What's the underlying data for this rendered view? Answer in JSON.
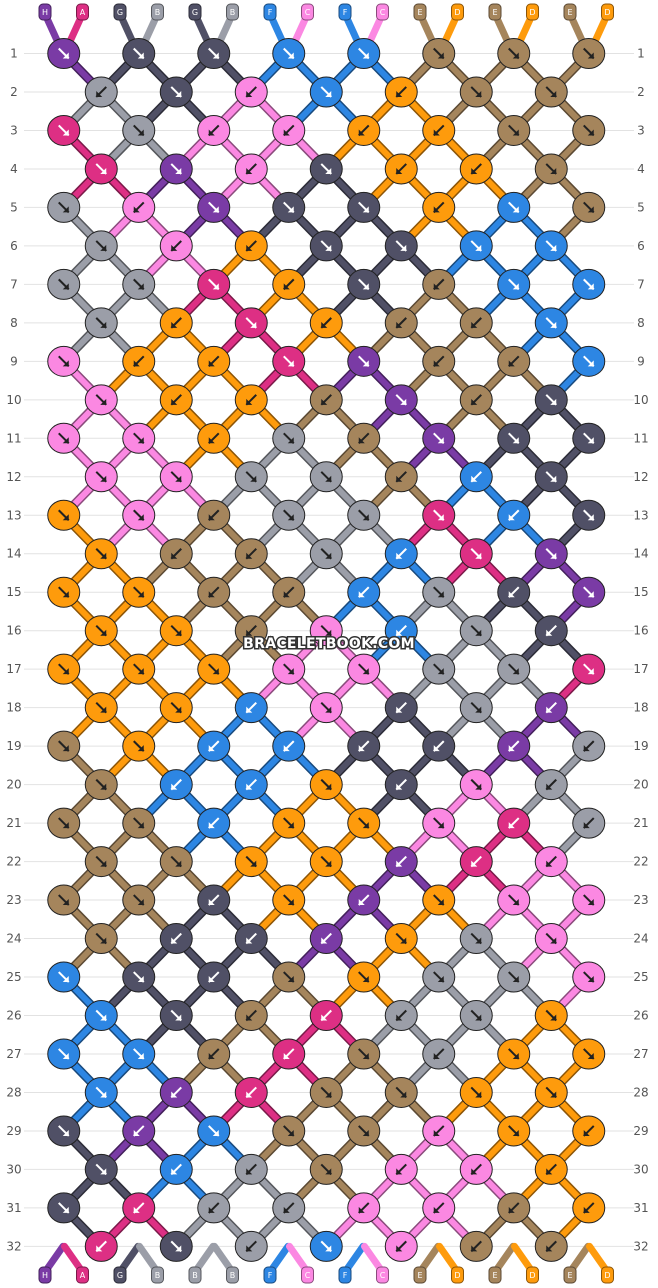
{
  "watermark": "BRACELETBOOK.COM",
  "colors": {
    "H": "#7a3ba5",
    "A": "#dd2f84",
    "G": "#505066",
    "B": "#9b9ea8",
    "F": "#2d86e3",
    "C": "#fb88e2",
    "E": "#a5855c",
    "D": "#fe9b0c"
  },
  "strings_top": [
    "H",
    "A",
    "G",
    "B",
    "G",
    "B",
    "F",
    "C",
    "F",
    "C",
    "E",
    "D",
    "E",
    "D",
    "E",
    "D"
  ],
  "strings_bottom": [
    "H",
    "A",
    "G",
    "B",
    "B",
    "B",
    "F",
    "C",
    "F",
    "C",
    "E",
    "D",
    "E",
    "D",
    "E",
    "D"
  ],
  "rows": [
    {
      "num": "1",
      "knots": [
        [
          "H",
          "f"
        ],
        [
          "G",
          "f"
        ],
        [
          "G",
          "f"
        ],
        [
          "F",
          "f"
        ],
        [
          "F",
          "f"
        ],
        [
          "E",
          "f"
        ],
        [
          "E",
          "f"
        ],
        [
          "E",
          "f"
        ]
      ]
    },
    {
      "num": "2",
      "knots": [
        [
          "B",
          "b"
        ],
        [
          "G",
          "f"
        ],
        [
          "C",
          "b"
        ],
        [
          "F",
          "f"
        ],
        [
          "D",
          "b"
        ],
        [
          "E",
          "f"
        ],
        [
          "E",
          "f"
        ]
      ]
    },
    {
      "num": "3",
      "knots": [
        [
          "A",
          "f"
        ],
        [
          "B",
          "f"
        ],
        [
          "C",
          "b"
        ],
        [
          "C",
          "b"
        ],
        [
          "D",
          "b"
        ],
        [
          "D",
          "b"
        ],
        [
          "E",
          "f"
        ],
        [
          "E",
          "f"
        ]
      ]
    },
    {
      "num": "4",
      "knots": [
        [
          "A",
          "f"
        ],
        [
          "H",
          "f"
        ],
        [
          "C",
          "b"
        ],
        [
          "G",
          "f"
        ],
        [
          "D",
          "b"
        ],
        [
          "D",
          "b"
        ],
        [
          "E",
          "f"
        ]
      ]
    },
    {
      "num": "5",
      "knots": [
        [
          "B",
          "f"
        ],
        [
          "C",
          "b"
        ],
        [
          "H",
          "f"
        ],
        [
          "G",
          "f"
        ],
        [
          "G",
          "f"
        ],
        [
          "D",
          "b"
        ],
        [
          "F",
          "f"
        ],
        [
          "E",
          "f"
        ]
      ]
    },
    {
      "num": "6",
      "knots": [
        [
          "B",
          "f"
        ],
        [
          "C",
          "b"
        ],
        [
          "D",
          "b"
        ],
        [
          "G",
          "f"
        ],
        [
          "G",
          "f"
        ],
        [
          "F",
          "f"
        ],
        [
          "F",
          "f"
        ]
      ]
    },
    {
      "num": "7",
      "knots": [
        [
          "B",
          "f"
        ],
        [
          "B",
          "f"
        ],
        [
          "A",
          "f"
        ],
        [
          "D",
          "b"
        ],
        [
          "G",
          "f"
        ],
        [
          "E",
          "b"
        ],
        [
          "F",
          "f"
        ],
        [
          "F",
          "f"
        ]
      ]
    },
    {
      "num": "8",
      "knots": [
        [
          "B",
          "f"
        ],
        [
          "D",
          "b"
        ],
        [
          "A",
          "f"
        ],
        [
          "D",
          "b"
        ],
        [
          "E",
          "b"
        ],
        [
          "E",
          "b"
        ],
        [
          "F",
          "f"
        ]
      ]
    },
    {
      "num": "9",
      "knots": [
        [
          "C",
          "f"
        ],
        [
          "D",
          "b"
        ],
        [
          "D",
          "b"
        ],
        [
          "A",
          "f"
        ],
        [
          "H",
          "f"
        ],
        [
          "E",
          "b"
        ],
        [
          "E",
          "b"
        ],
        [
          "F",
          "f"
        ]
      ]
    },
    {
      "num": "10",
      "knots": [
        [
          "C",
          "f"
        ],
        [
          "D",
          "b"
        ],
        [
          "D",
          "b"
        ],
        [
          "E",
          "b"
        ],
        [
          "H",
          "f"
        ],
        [
          "E",
          "b"
        ],
        [
          "G",
          "f"
        ]
      ]
    },
    {
      "num": "11",
      "knots": [
        [
          "C",
          "f"
        ],
        [
          "C",
          "f"
        ],
        [
          "D",
          "b"
        ],
        [
          "B",
          "f"
        ],
        [
          "E",
          "b"
        ],
        [
          "H",
          "f"
        ],
        [
          "G",
          "f"
        ],
        [
          "G",
          "f"
        ]
      ]
    },
    {
      "num": "12",
      "knots": [
        [
          "C",
          "f"
        ],
        [
          "C",
          "f"
        ],
        [
          "B",
          "f"
        ],
        [
          "B",
          "f"
        ],
        [
          "E",
          "b"
        ],
        [
          "F",
          "b"
        ],
        [
          "G",
          "f"
        ]
      ]
    },
    {
      "num": "13",
      "knots": [
        [
          "D",
          "f"
        ],
        [
          "C",
          "f"
        ],
        [
          "E",
          "b"
        ],
        [
          "B",
          "f"
        ],
        [
          "B",
          "f"
        ],
        [
          "A",
          "f"
        ],
        [
          "F",
          "b"
        ],
        [
          "G",
          "f"
        ]
      ]
    },
    {
      "num": "14",
      "knots": [
        [
          "D",
          "f"
        ],
        [
          "E",
          "b"
        ],
        [
          "E",
          "b"
        ],
        [
          "B",
          "f"
        ],
        [
          "F",
          "b"
        ],
        [
          "A",
          "f"
        ],
        [
          "H",
          "f"
        ]
      ]
    },
    {
      "num": "15",
      "knots": [
        [
          "D",
          "f"
        ],
        [
          "D",
          "f"
        ],
        [
          "E",
          "b"
        ],
        [
          "E",
          "b"
        ],
        [
          "F",
          "b"
        ],
        [
          "B",
          "f"
        ],
        [
          "G",
          "b"
        ],
        [
          "H",
          "f"
        ]
      ]
    },
    {
      "num": "16",
      "knots": [
        [
          "D",
          "f"
        ],
        [
          "D",
          "f"
        ],
        [
          "E",
          "b"
        ],
        [
          "C",
          "f"
        ],
        [
          "F",
          "b"
        ],
        [
          "B",
          "f"
        ],
        [
          "G",
          "b"
        ]
      ]
    },
    {
      "num": "17",
      "knots": [
        [
          "D",
          "f"
        ],
        [
          "D",
          "f"
        ],
        [
          "D",
          "f"
        ],
        [
          "C",
          "f"
        ],
        [
          "C",
          "f"
        ],
        [
          "B",
          "f"
        ],
        [
          "B",
          "f"
        ],
        [
          "A",
          "f"
        ]
      ]
    },
    {
      "num": "18",
      "knots": [
        [
          "D",
          "f"
        ],
        [
          "D",
          "f"
        ],
        [
          "F",
          "b"
        ],
        [
          "C",
          "f"
        ],
        [
          "G",
          "b"
        ],
        [
          "B",
          "f"
        ],
        [
          "H",
          "b"
        ]
      ]
    },
    {
      "num": "19",
      "knots": [
        [
          "E",
          "f"
        ],
        [
          "D",
          "f"
        ],
        [
          "F",
          "b"
        ],
        [
          "F",
          "b"
        ],
        [
          "G",
          "b"
        ],
        [
          "G",
          "b"
        ],
        [
          "H",
          "b"
        ],
        [
          "B",
          "b"
        ]
      ]
    },
    {
      "num": "20",
      "knots": [
        [
          "E",
          "f"
        ],
        [
          "F",
          "b"
        ],
        [
          "F",
          "b"
        ],
        [
          "D",
          "f"
        ],
        [
          "G",
          "b"
        ],
        [
          "C",
          "f"
        ],
        [
          "B",
          "b"
        ]
      ]
    },
    {
      "num": "21",
      "knots": [
        [
          "E",
          "f"
        ],
        [
          "E",
          "f"
        ],
        [
          "F",
          "b"
        ],
        [
          "D",
          "f"
        ],
        [
          "D",
          "f"
        ],
        [
          "C",
          "f"
        ],
        [
          "A",
          "b"
        ],
        [
          "B",
          "b"
        ]
      ]
    },
    {
      "num": "22",
      "knots": [
        [
          "E",
          "f"
        ],
        [
          "E",
          "f"
        ],
        [
          "D",
          "f"
        ],
        [
          "D",
          "f"
        ],
        [
          "H",
          "b"
        ],
        [
          "A",
          "b"
        ],
        [
          "C",
          "b"
        ]
      ]
    },
    {
      "num": "23",
      "knots": [
        [
          "E",
          "f"
        ],
        [
          "E",
          "f"
        ],
        [
          "G",
          "b"
        ],
        [
          "D",
          "f"
        ],
        [
          "H",
          "b"
        ],
        [
          "D",
          "f"
        ],
        [
          "C",
          "f"
        ],
        [
          "C",
          "f"
        ]
      ]
    },
    {
      "num": "24",
      "knots": [
        [
          "E",
          "f"
        ],
        [
          "G",
          "b"
        ],
        [
          "G",
          "b"
        ],
        [
          "H",
          "b"
        ],
        [
          "D",
          "f"
        ],
        [
          "B",
          "f"
        ],
        [
          "C",
          "f"
        ]
      ]
    },
    {
      "num": "25",
      "knots": [
        [
          "F",
          "f"
        ],
        [
          "G",
          "f"
        ],
        [
          "G",
          "b"
        ],
        [
          "E",
          "f"
        ],
        [
          "D",
          "f"
        ],
        [
          "B",
          "f"
        ],
        [
          "B",
          "f"
        ],
        [
          "C",
          "f"
        ]
      ]
    },
    {
      "num": "26",
      "knots": [
        [
          "F",
          "f"
        ],
        [
          "G",
          "f"
        ],
        [
          "E",
          "b"
        ],
        [
          "A",
          "b"
        ],
        [
          "B",
          "b"
        ],
        [
          "B",
          "f"
        ],
        [
          "D",
          "f"
        ]
      ]
    },
    {
      "num": "27",
      "knots": [
        [
          "F",
          "f"
        ],
        [
          "F",
          "f"
        ],
        [
          "E",
          "b"
        ],
        [
          "A",
          "b"
        ],
        [
          "E",
          "f"
        ],
        [
          "B",
          "b"
        ],
        [
          "D",
          "f"
        ],
        [
          "D",
          "f"
        ]
      ]
    },
    {
      "num": "28",
      "knots": [
        [
          "F",
          "f"
        ],
        [
          "H",
          "b"
        ],
        [
          "A",
          "b"
        ],
        [
          "E",
          "f"
        ],
        [
          "E",
          "f"
        ],
        [
          "D",
          "f"
        ],
        [
          "D",
          "f"
        ]
      ]
    },
    {
      "num": "29",
      "knots": [
        [
          "G",
          "f"
        ],
        [
          "H",
          "b"
        ],
        [
          "F",
          "f"
        ],
        [
          "E",
          "f"
        ],
        [
          "E",
          "f"
        ],
        [
          "C",
          "b"
        ],
        [
          "D",
          "f"
        ],
        [
          "D",
          "b"
        ]
      ]
    },
    {
      "num": "30",
      "knots": [
        [
          "G",
          "f"
        ],
        [
          "F",
          "b"
        ],
        [
          "B",
          "b"
        ],
        [
          "E",
          "f"
        ],
        [
          "C",
          "b"
        ],
        [
          "C",
          "b"
        ],
        [
          "D",
          "b"
        ]
      ]
    },
    {
      "num": "31",
      "knots": [
        [
          "G",
          "f"
        ],
        [
          "A",
          "b"
        ],
        [
          "B",
          "b"
        ],
        [
          "B",
          "b"
        ],
        [
          "C",
          "b"
        ],
        [
          "C",
          "b"
        ],
        [
          "E",
          "b"
        ],
        [
          "D",
          "b"
        ]
      ]
    },
    {
      "num": "32",
      "knots": [
        [
          "A",
          "b"
        ],
        [
          "G",
          "f"
        ],
        [
          "B",
          "b"
        ],
        [
          "F",
          "f"
        ],
        [
          "C",
          "b"
        ],
        [
          "E",
          "b"
        ],
        [
          "E",
          "b"
        ]
      ]
    }
  ]
}
